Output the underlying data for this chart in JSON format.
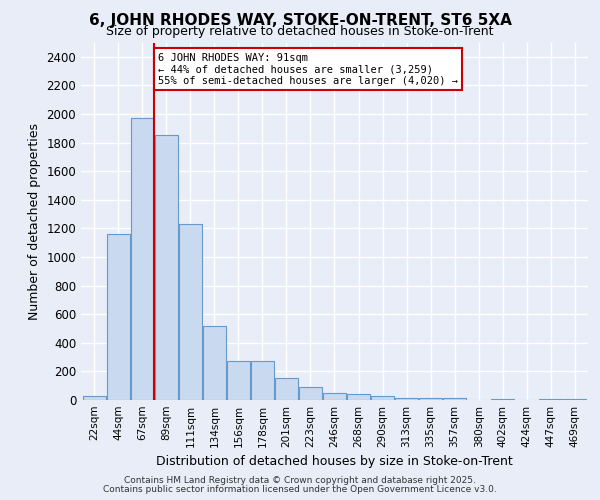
{
  "title_line1": "6, JOHN RHODES WAY, STOKE-ON-TRENT, ST6 5XA",
  "title_line2": "Size of property relative to detached houses in Stoke-on-Trent",
  "xlabel": "Distribution of detached houses by size in Stoke-on-Trent",
  "ylabel": "Number of detached properties",
  "footer_line1": "Contains HM Land Registry data © Crown copyright and database right 2025.",
  "footer_line2": "Contains public sector information licensed under the Open Government Licence v3.0.",
  "categories": [
    "22sqm",
    "44sqm",
    "67sqm",
    "89sqm",
    "111sqm",
    "134sqm",
    "156sqm",
    "178sqm",
    "201sqm",
    "223sqm",
    "246sqm",
    "268sqm",
    "290sqm",
    "313sqm",
    "335sqm",
    "357sqm",
    "380sqm",
    "402sqm",
    "424sqm",
    "447sqm",
    "469sqm"
  ],
  "bar_values": [
    25,
    1160,
    1970,
    1850,
    1230,
    515,
    270,
    270,
    155,
    90,
    48,
    40,
    25,
    15,
    15,
    15,
    0,
    5,
    0,
    5,
    5
  ],
  "bar_color": "#c8d9f0",
  "bar_edge_color": "#6699cc",
  "ylim": [
    0,
    2500
  ],
  "yticks": [
    0,
    200,
    400,
    600,
    800,
    1000,
    1200,
    1400,
    1600,
    1800,
    2000,
    2200,
    2400
  ],
  "subject_line_color": "#cc0000",
  "annotation_text": "6 JOHN RHODES WAY: 91sqm\n← 44% of detached houses are smaller (3,259)\n55% of semi-detached houses are larger (4,020) →",
  "annotation_box_color": "#cc0000",
  "bg_color": "#e8edf8",
  "plot_bg_color": "#e8edf8",
  "grid_color": "#ffffff"
}
